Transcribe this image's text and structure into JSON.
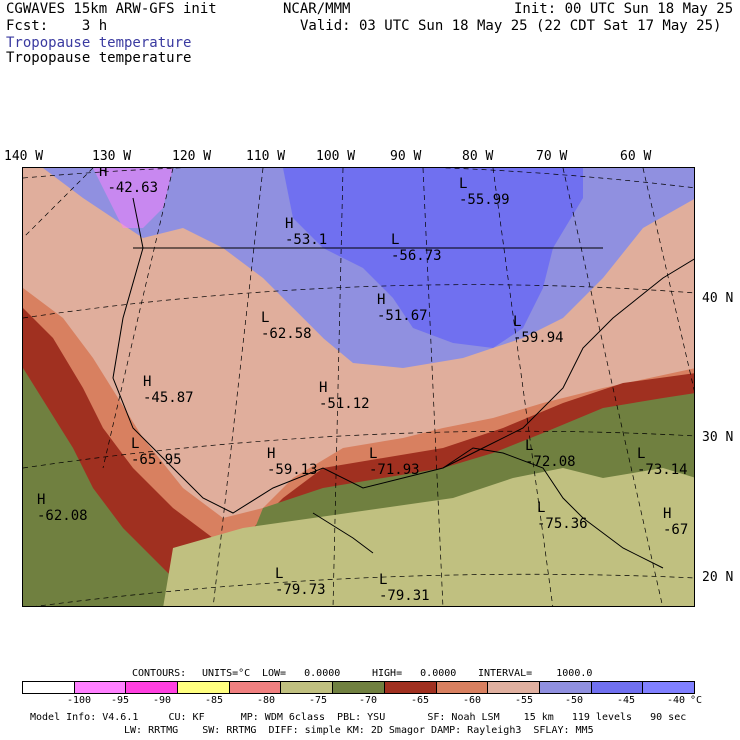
{
  "header": {
    "line1_left": "CGWAVES 15km ARW-GFS init",
    "line1_mid": "NCAR/MMM",
    "line1_right": "Init: 00 UTC Sun 18 May 25",
    "line2_left": "Fcst:    3 h",
    "line2_right": "Valid: 03 UTC Sun 18 May 25 (22 CDT Sat 17 May 25)",
    "field_blue": "Tropopause temperature",
    "field_black": "Tropopause temperature"
  },
  "axes": {
    "lon_labels": [
      "140 W",
      "130 W",
      "120 W",
      "110 W",
      "100 W",
      "90 W",
      "80 W",
      "70 W",
      "60 W"
    ],
    "lat_labels": [
      "40 N",
      "30 N",
      "20 N"
    ]
  },
  "map_labels": [
    {
      "letter": "H",
      "value": "-42.63"
    },
    {
      "letter": "L",
      "value": "-55.99"
    },
    {
      "letter": "H",
      "value": "-53.1"
    },
    {
      "letter": "L",
      "value": "-56.73"
    },
    {
      "letter": "H",
      "value": "-51.67"
    },
    {
      "letter": "L",
      "value": "-62.58"
    },
    {
      "letter": "L",
      "value": "-59.94"
    },
    {
      "letter": "H",
      "value": "-45.87"
    },
    {
      "letter": "H",
      "value": "-51.12"
    },
    {
      "letter": "L",
      "value": "-65.95"
    },
    {
      "letter": "H",
      "value": "-59.13"
    },
    {
      "letter": "L",
      "value": "-71.93"
    },
    {
      "letter": "L",
      "value": "-72.08"
    },
    {
      "letter": "L",
      "value": "-73.14"
    },
    {
      "letter": "H",
      "value": "-62.08"
    },
    {
      "letter": "L",
      "value": "-75.36"
    },
    {
      "letter": "H",
      "value": "-67"
    },
    {
      "letter": "L",
      "value": "-79.73"
    },
    {
      "letter": "L",
      "value": "-79.31"
    }
  ],
  "contours": {
    "label": "CONTOURS:",
    "units": "UNITS=°C",
    "low": "LOW=   0.0000",
    "high": "HIGH=   0.0000",
    "interval": "INTERVAL=    1000.0"
  },
  "colorbar": {
    "colors": [
      "#ffffff",
      "#ff80ff",
      "#ff40e0",
      "#ffff80",
      "#f08080",
      "#c0c080",
      "#708040",
      "#a03020",
      "#d88060",
      "#e0b0a0",
      "#9090e0",
      "#7070f0",
      "#8080ff"
    ],
    "labels": [
      "-100",
      "-95",
      "-90",
      "-85",
      "-80",
      "-75",
      "-70",
      "-65",
      "-60",
      "-55",
      "-50",
      "-45",
      "-40",
      "°C"
    ]
  },
  "footer": {
    "line1": "Model Info: V4.6.1     CU: KF      MP: WDM 6class  PBL: YSU       SF: Noah LSM    15 km   119 levels   90 sec",
    "line2": "LW: RRTMG    SW: RRTMG  DIFF: simple KM: 2D Smagor DAMP: Rayleigh3  SFLAY: MM5"
  }
}
